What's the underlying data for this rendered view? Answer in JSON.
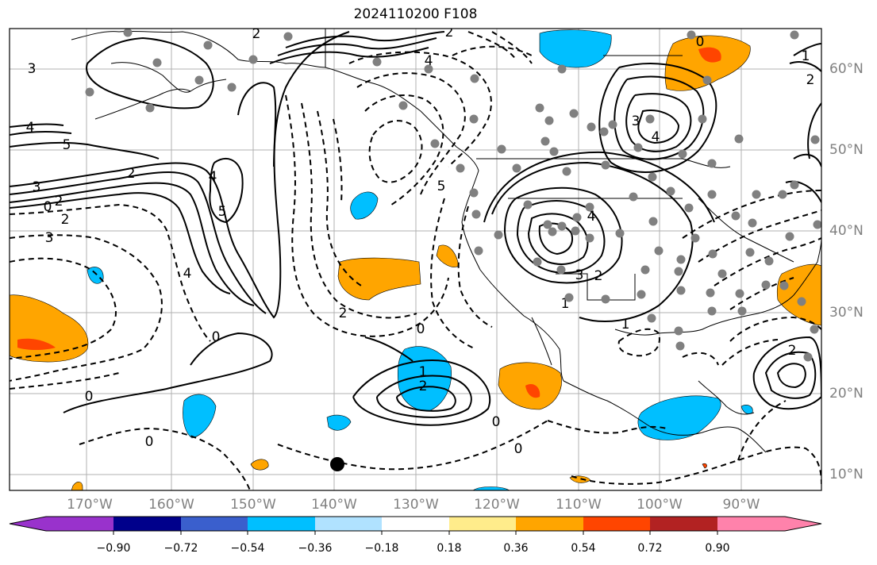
{
  "title": "2024110200 F108",
  "lat_labels": [
    "60°N",
    "50°N",
    "40°N",
    "30°N",
    "20°N",
    "10°N"
  ],
  "lon_labels": [
    "170°W",
    "160°W",
    "150°W",
    "140°W",
    "130°W",
    "120°W",
    "110°W",
    "100°W",
    "90°W"
  ],
  "colorbar": {
    "ticks": [
      "−0.90",
      "−0.72",
      "−0.54",
      "−0.36",
      "−0.18",
      "0.18",
      "0.36",
      "0.54",
      "0.72",
      "0.90"
    ],
    "colors": [
      "#9932cc",
      "#00008b",
      "#3a5fcd",
      "#00bfff",
      "#b0e2ff",
      "#ffffff",
      "#ffec8b",
      "#ffa500",
      "#ff4500",
      "#b22222",
      "#ff82ab"
    ]
  },
  "contour_labels": {
    "pos": [
      "3",
      "4",
      "5",
      "3",
      "2",
      "4",
      "5",
      "2",
      "4",
      "3",
      "4",
      "3",
      "2",
      "1",
      "2",
      "1",
      "2",
      "4",
      "2",
      "1"
    ],
    "neg": [
      "2",
      "4",
      "5",
      "2",
      "0",
      "2",
      "3",
      "0",
      "0",
      "0",
      "0",
      "0",
      "2",
      "1",
      "0",
      "0"
    ]
  }
}
